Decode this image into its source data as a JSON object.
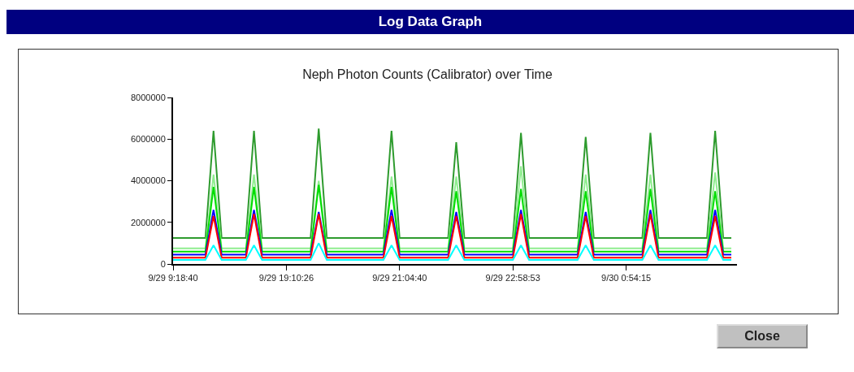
{
  "chart_data": {
    "type": "line",
    "title": "Neph Photon Counts (Calibrator) over Time",
    "annotations": [
      "Log Data Graph",
      "Close"
    ],
    "categories": [
      "9/29 9:18:40",
      null,
      null,
      null,
      null,
      null,
      null,
      null,
      null,
      null,
      null,
      null,
      null,
      null,
      "9/29 19:10:26",
      null,
      null,
      null,
      null,
      null,
      null,
      null,
      null,
      null,
      null,
      null,
      null,
      null,
      "9/29 21:04:40",
      null,
      null,
      null,
      null,
      null,
      null,
      null,
      null,
      null,
      null,
      null,
      null,
      null,
      "9/29 22:58:53",
      null,
      null,
      null,
      null,
      null,
      null,
      null,
      null,
      null,
      null,
      null,
      null,
      null,
      "9/30 0:54:15",
      null,
      null,
      null,
      null,
      null,
      null,
      null,
      null,
      null,
      null,
      null,
      null,
      null
    ],
    "series": [
      {
        "color": "#2e9b2e",
        "values": [
          1250000,
          1250000,
          1250000,
          1250000,
          1250000,
          6400000,
          1250000,
          1250000,
          1250000,
          1250000,
          6400000,
          1250000,
          1250000,
          1250000,
          1250000,
          1250000,
          1250000,
          1250000,
          6500000,
          1250000,
          1250000,
          1250000,
          1250000,
          1250000,
          1250000,
          1250000,
          1250000,
          6400000,
          1250000,
          1250000,
          1250000,
          1250000,
          1250000,
          1250000,
          1250000,
          5850000,
          1250000,
          1250000,
          1250000,
          1250000,
          1250000,
          1250000,
          1250000,
          6300000,
          1250000,
          1250000,
          1250000,
          1250000,
          1250000,
          1250000,
          1250000,
          6100000,
          1250000,
          1250000,
          1250000,
          1250000,
          1250000,
          1250000,
          1250000,
          6300000,
          1250000,
          1250000,
          1250000,
          1250000,
          1250000,
          1250000,
          1250000,
          6400000,
          1250000,
          1250000
        ]
      },
      {
        "color": "#90ee90",
        "values": [
          750000,
          750000,
          750000,
          750000,
          750000,
          4300000,
          750000,
          750000,
          750000,
          750000,
          4300000,
          750000,
          750000,
          750000,
          750000,
          750000,
          750000,
          750000,
          4000000,
          750000,
          750000,
          750000,
          750000,
          750000,
          750000,
          750000,
          750000,
          4200000,
          750000,
          750000,
          750000,
          750000,
          750000,
          750000,
          750000,
          4200000,
          750000,
          750000,
          750000,
          750000,
          750000,
          750000,
          750000,
          4700000,
          750000,
          750000,
          750000,
          750000,
          750000,
          750000,
          750000,
          4300000,
          750000,
          750000,
          750000,
          750000,
          750000,
          750000,
          750000,
          4300000,
          750000,
          750000,
          750000,
          750000,
          750000,
          750000,
          750000,
          4400000,
          750000,
          750000
        ]
      },
      {
        "color": "#00dd00",
        "values": [
          600000,
          600000,
          600000,
          600000,
          600000,
          3700000,
          600000,
          600000,
          600000,
          600000,
          3700000,
          600000,
          600000,
          600000,
          600000,
          600000,
          600000,
          600000,
          3800000,
          600000,
          600000,
          600000,
          600000,
          600000,
          600000,
          600000,
          600000,
          3700000,
          600000,
          600000,
          600000,
          600000,
          600000,
          600000,
          600000,
          3500000,
          600000,
          600000,
          600000,
          600000,
          600000,
          600000,
          600000,
          3600000,
          600000,
          600000,
          600000,
          600000,
          600000,
          600000,
          600000,
          3500000,
          600000,
          600000,
          600000,
          600000,
          600000,
          600000,
          600000,
          3600000,
          600000,
          600000,
          600000,
          600000,
          600000,
          600000,
          600000,
          3500000,
          600000,
          600000
        ]
      },
      {
        "color": "#0000ff",
        "values": [
          450000,
          450000,
          450000,
          450000,
          450000,
          2600000,
          450000,
          450000,
          450000,
          450000,
          2600000,
          450000,
          450000,
          450000,
          450000,
          450000,
          450000,
          450000,
          2500000,
          450000,
          450000,
          450000,
          450000,
          450000,
          450000,
          450000,
          450000,
          2600000,
          450000,
          450000,
          450000,
          450000,
          450000,
          450000,
          450000,
          2500000,
          450000,
          450000,
          450000,
          450000,
          450000,
          450000,
          450000,
          2600000,
          450000,
          450000,
          450000,
          450000,
          450000,
          450000,
          450000,
          2500000,
          450000,
          450000,
          450000,
          450000,
          450000,
          450000,
          450000,
          2600000,
          450000,
          450000,
          450000,
          450000,
          450000,
          450000,
          450000,
          2600000,
          450000,
          450000
        ]
      },
      {
        "color": "#ff0000",
        "values": [
          300000,
          300000,
          300000,
          300000,
          300000,
          2300000,
          300000,
          300000,
          300000,
          300000,
          2400000,
          300000,
          300000,
          300000,
          300000,
          300000,
          300000,
          300000,
          2400000,
          300000,
          300000,
          300000,
          300000,
          300000,
          300000,
          300000,
          300000,
          2300000,
          300000,
          300000,
          300000,
          300000,
          300000,
          300000,
          300000,
          2300000,
          300000,
          300000,
          300000,
          300000,
          300000,
          300000,
          300000,
          2400000,
          300000,
          300000,
          300000,
          300000,
          300000,
          300000,
          300000,
          2300000,
          300000,
          300000,
          300000,
          300000,
          300000,
          300000,
          300000,
          2400000,
          300000,
          300000,
          300000,
          300000,
          300000,
          300000,
          300000,
          2300000,
          300000,
          300000
        ]
      },
      {
        "color": "#00ffff",
        "values": [
          200000,
          200000,
          200000,
          200000,
          200000,
          900000,
          200000,
          200000,
          200000,
          200000,
          900000,
          200000,
          200000,
          200000,
          200000,
          200000,
          200000,
          200000,
          1000000,
          200000,
          200000,
          200000,
          200000,
          200000,
          200000,
          200000,
          200000,
          900000,
          200000,
          200000,
          200000,
          200000,
          200000,
          200000,
          200000,
          900000,
          200000,
          200000,
          200000,
          200000,
          200000,
          200000,
          200000,
          900000,
          200000,
          200000,
          200000,
          200000,
          200000,
          200000,
          200000,
          900000,
          200000,
          200000,
          200000,
          200000,
          200000,
          200000,
          200000,
          900000,
          200000,
          200000,
          200000,
          200000,
          200000,
          200000,
          200000,
          900000,
          200000,
          200000
        ]
      }
    ],
    "ylim": [
      0,
      8000000
    ],
    "yticks": [
      0,
      2000000,
      4000000,
      6000000,
      8000000
    ],
    "grid": false,
    "marker": "none",
    "line_style": "solid"
  }
}
